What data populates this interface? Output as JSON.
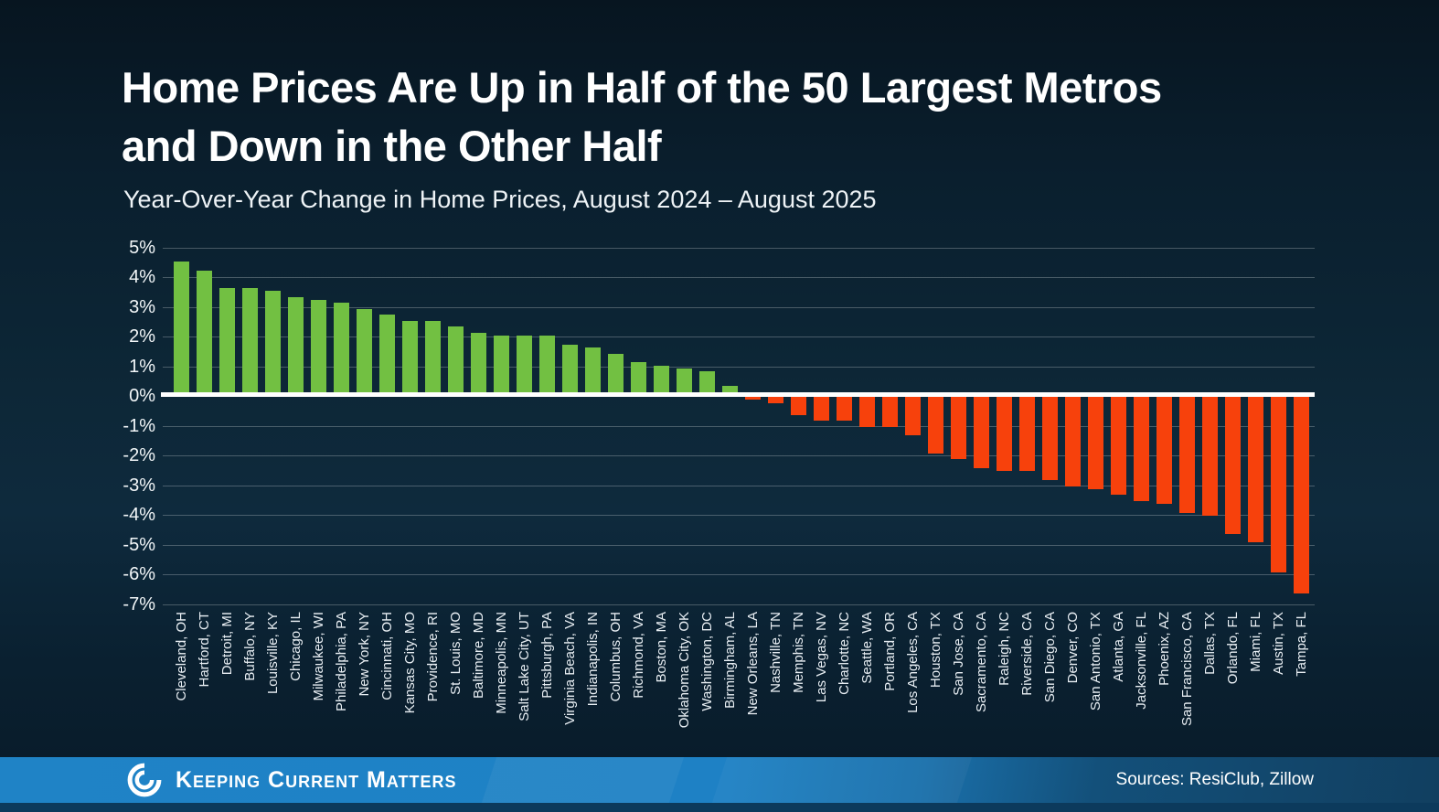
{
  "page": {
    "title_lines": [
      "Home Prices Are Up in Half of the 50 Largest Metros",
      "and Down in the Other Half"
    ],
    "subtitle": "Year-Over-Year Change in Home Prices, August 2024 – August 2025"
  },
  "footer": {
    "brand": "Keeping Current Matters",
    "logo_icon": "kcm-swirl-icon",
    "sources": "Sources: ResiClub, Zillow"
  },
  "colors": {
    "positive_bar": "#72c042",
    "negative_bar": "#f7410c",
    "background": "#0d2737",
    "zero_line": "#ffffff",
    "gridline": "rgba(255,255,255,0.25)",
    "footer_blue_left": "#1f83c6",
    "footer_blue_right": "#113f60"
  },
  "chart_data": {
    "type": "bar",
    "title": "Home Prices Are Up in Half of the 50 Largest Metros and Down in the Other Half",
    "subtitle": "Year-Over-Year Change in Home Prices, August 2024 – August 2025",
    "xlabel": "",
    "ylabel": "",
    "ylim": [
      -7,
      5
    ],
    "grid": true,
    "legend": "none",
    "yticks": [
      5,
      4,
      3,
      2,
      1,
      0,
      -1,
      -2,
      -3,
      -4,
      -5,
      -6,
      -7
    ],
    "ytick_labels": [
      "5%",
      "4%",
      "3%",
      "2%",
      "1%",
      "0%",
      "-1%",
      "-2%",
      "-3%",
      "-4%",
      "-5%",
      "-6%",
      "-7%"
    ],
    "categories": [
      "Cleveland, OH",
      "Hartford, CT",
      "Detroit, MI",
      "Buffalo, NY",
      "Louisville, KY",
      "Chicago, IL",
      "Milwaukee, WI",
      "Philadelphia, PA",
      "New York, NY",
      "Cincinnati, OH",
      "Kansas City, MO",
      "Providence, RI",
      "St. Louis, MO",
      "Baltimore, MD",
      "Minneapolis, MN",
      "Salt Lake City, UT",
      "Pittsburgh, PA",
      "Virginia Beach, VA",
      "Indianapolis, IN",
      "Columbus, OH",
      "Richmond, VA",
      "Boston, MA",
      "Oklahoma City, OK",
      "Washington, DC",
      "Birmingham, AL",
      "New Orleans, LA",
      "Nashville, TN",
      "Memphis, TN",
      "Las Vegas, NV",
      "Charlotte, NC",
      "Seattle, WA",
      "Portland, OR",
      "Los Angeles, CA",
      "Houston, TX",
      "San Jose, CA",
      "Sacramento, CA",
      "Raleigh, NC",
      "Riverside, CA",
      "San Diego, CA",
      "Denver, CO",
      "San Antonio, TX",
      "Atlanta, GA",
      "Jacksonville, FL",
      "Phoenix, AZ",
      "San Francisco, CA",
      "Dallas, TX",
      "Orlando, FL",
      "Miami, FL",
      "Austin, TX",
      "Tampa, FL"
    ],
    "values": [
      4.5,
      4.2,
      3.6,
      3.6,
      3.5,
      3.3,
      3.2,
      3.1,
      2.9,
      2.7,
      2.5,
      2.5,
      2.3,
      2.1,
      2.0,
      2.0,
      2.0,
      1.7,
      1.6,
      1.4,
      1.1,
      1.0,
      0.9,
      0.8,
      0.3,
      -0.1,
      -0.2,
      -0.6,
      -0.8,
      -0.8,
      -1.0,
      -1.0,
      -1.3,
      -1.9,
      -2.1,
      -2.4,
      -2.5,
      -2.5,
      -2.8,
      -3.0,
      -3.1,
      -3.3,
      -3.5,
      -3.6,
      -3.9,
      -4.0,
      -4.6,
      -4.9,
      -5.9,
      -6.6
    ],
    "positive_color": "#72c042",
    "negative_color": "#f7410c"
  }
}
